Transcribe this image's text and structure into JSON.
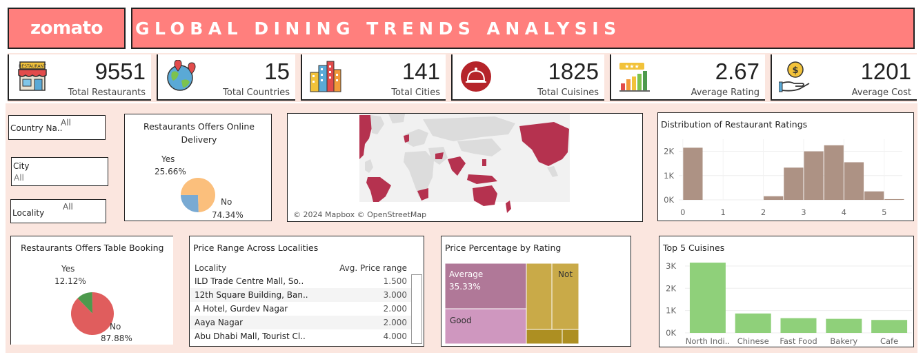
{
  "header": {
    "logo": "zomato",
    "title": "GLOBAL DINING TRENDS ANALYSIS"
  },
  "kpis": [
    {
      "value": "9551",
      "label": "Total Restaurants",
      "icon": "restaurant-icon"
    },
    {
      "value": "15",
      "label": "Total Countries",
      "icon": "globe-pin-icon"
    },
    {
      "value": "141",
      "label": "Total Cities",
      "icon": "city-buildings-icon"
    },
    {
      "value": "1825",
      "label": "Total Cuisines",
      "icon": "cloche-icon"
    },
    {
      "value": "2.67",
      "label": "Average Rating",
      "icon": "rating-bars-icon"
    },
    {
      "value": "1201",
      "label": "Average Cost",
      "icon": "money-hand-icon"
    }
  ],
  "filters": {
    "country": {
      "label": "Country Na..",
      "value": "All"
    },
    "city": {
      "label": "City",
      "value": "All"
    },
    "locality": {
      "label": "Locality",
      "value": "All"
    }
  },
  "map": {
    "credit": "© 2024 Mapbox © OpenStreetMap"
  },
  "colors": {
    "accent": "#ff7f7d",
    "map_highlight": "#b5324f",
    "yes": "#79aad3",
    "no": "#fbbf7c",
    "booking_yes": "#4d9a4d",
    "booking_no": "#e05d5d",
    "ratings_bar": "#ad9284",
    "cuisine_bar": "#8fd07a"
  },
  "chart_data": [
    {
      "type": "pie",
      "title": "Restaurants Offers Online Delivery",
      "labels": [
        "Yes",
        "No"
      ],
      "values": [
        25.66,
        74.34
      ],
      "value_labels": [
        "25.66%",
        "74.34%"
      ]
    },
    {
      "type": "bar",
      "title": "Distribution of Restaurant Ratings",
      "x": [
        0.25,
        1.75,
        2.25,
        2.75,
        3.25,
        3.75,
        4.25,
        4.75,
        5.25
      ],
      "values": [
        2150,
        0,
        150,
        1330,
        2000,
        2250,
        1550,
        350,
        30
      ],
      "xticks": [
        "0",
        "1",
        "2",
        "3",
        "4",
        "5"
      ],
      "yticks": [
        "0K",
        "1K",
        "2K"
      ],
      "xlim": [
        -0.1,
        5.45
      ],
      "ylim": [
        0,
        2500
      ]
    },
    {
      "type": "pie",
      "title": "Restaurants Offers Table Booking",
      "labels": [
        "Yes",
        "No"
      ],
      "values": [
        12.12,
        87.88
      ],
      "value_labels": [
        "12.12%",
        "87.88%"
      ]
    },
    {
      "type": "table",
      "title": "Price Range Across Localities",
      "columns": [
        "Locality",
        "Avg. Price range"
      ],
      "rows": [
        [
          "ILD Trade Centre Mall, So..",
          "1.500"
        ],
        [
          "12th Square Building, Ban..",
          "3.000"
        ],
        [
          "A Hotel, Gurdev Nagar",
          "2.000"
        ],
        [
          "Aaya Nagar",
          "2.000"
        ],
        [
          "Abu Dhabi Mall, Tourist Cl..",
          "4.000"
        ]
      ]
    },
    {
      "type": "treemap",
      "title": "Price Percentage by Rating",
      "tiles": [
        {
          "name": "Average",
          "value_label": "35.33%",
          "color": "#b07898"
        },
        {
          "name": "Good",
          "value_label": "",
          "color": "#cf97bf"
        },
        {
          "name": "",
          "value_label": "",
          "color": "#c9aa48"
        },
        {
          "name": "Not",
          "value_label": "",
          "color": "#c9aa48"
        },
        {
          "name": "",
          "value_label": "",
          "color": "#ad8f22"
        },
        {
          "name": "",
          "value_label": "",
          "color": "#ad8f22"
        }
      ]
    },
    {
      "type": "bar",
      "title": "Top 5 Cuisines",
      "categories": [
        "North Indi..",
        "Chinese",
        "Fast Food",
        "Bakery",
        "Cafe"
      ],
      "values": [
        3150,
        870,
        660,
        630,
        580
      ],
      "yticks": [
        "0K",
        "1K",
        "2K",
        "3K"
      ],
      "ylim": [
        0,
        3400
      ]
    }
  ]
}
